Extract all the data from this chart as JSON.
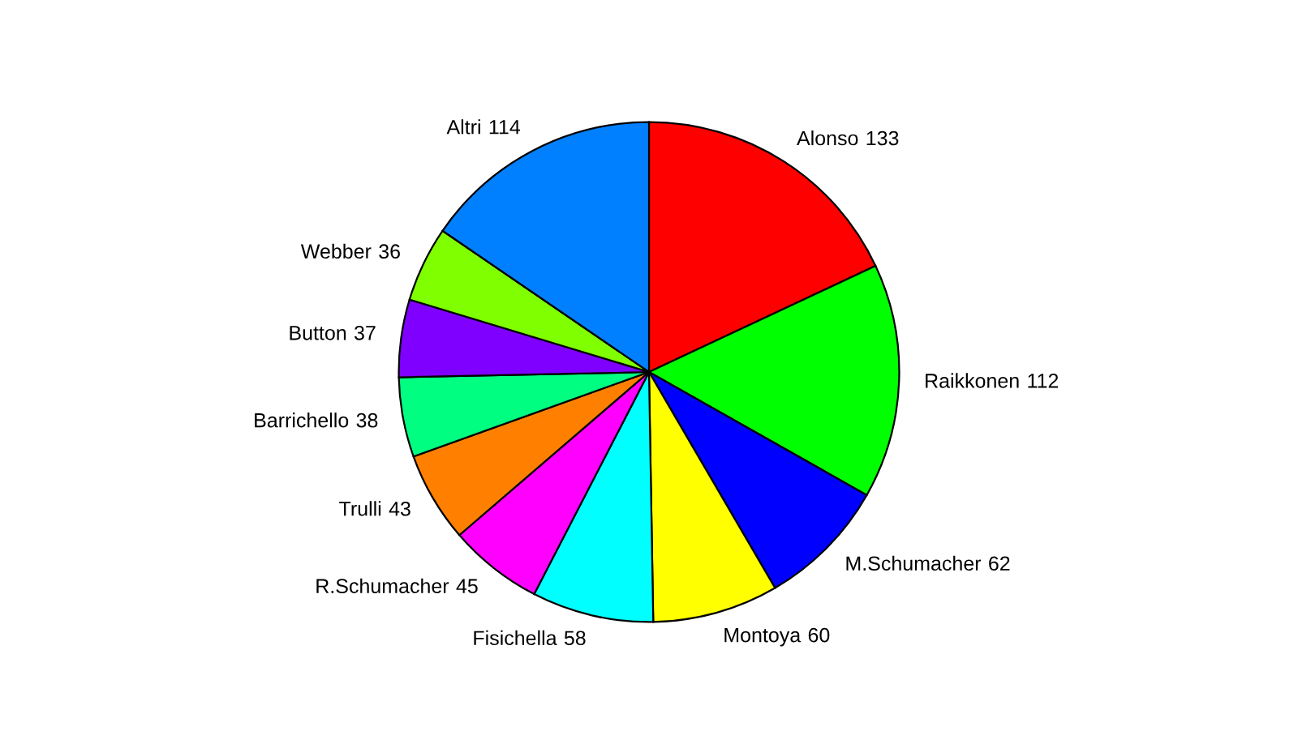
{
  "chart_data": {
    "type": "pie",
    "categories": [
      "Alonso",
      "Raikkonen",
      "M.Schumacher",
      "Montoya",
      "Fisichella",
      "R.Schumacher",
      "Trulli",
      "Barrichello",
      "Button",
      "Webber",
      "Altri"
    ],
    "values": [
      133,
      112,
      62,
      60,
      58,
      45,
      43,
      38,
      37,
      36,
      114
    ],
    "colors": [
      "#ff0000",
      "#00ff00",
      "#0000ff",
      "#ffff00",
      "#00ffff",
      "#ff00ff",
      "#ff8000",
      "#00ff80",
      "#8000ff",
      "#80ff00",
      "#0080ff"
    ],
    "data_labels": true
  }
}
